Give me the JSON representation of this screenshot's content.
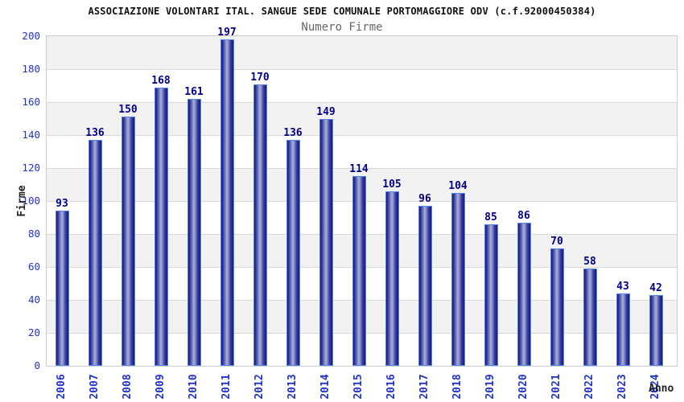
{
  "chart_data": {
    "type": "bar",
    "title": "ASSOCIAZIONE VOLONTARI ITAL. SANGUE SEDE COMUNALE PORTOMAGGIORE ODV (c.f.92000450384)",
    "subtitle": "Numero Firme",
    "ylabel": "Firme",
    "xlabel": "Anno",
    "categories": [
      "2006",
      "2007",
      "2008",
      "2009",
      "2010",
      "2011",
      "2012",
      "2013",
      "2014",
      "2015",
      "2016",
      "2017",
      "2018",
      "2019",
      "2020",
      "2021",
      "2022",
      "2023",
      "2024"
    ],
    "values": [
      93,
      136,
      150,
      168,
      161,
      197,
      170,
      136,
      149,
      114,
      105,
      96,
      104,
      85,
      86,
      70,
      58,
      43,
      42
    ],
    "ylim": [
      0,
      200
    ],
    "yticks": [
      0,
      20,
      40,
      60,
      80,
      100,
      120,
      140,
      160,
      180,
      200
    ],
    "grid": "horizontal gridlines every 20 with alternating gray/white bands",
    "legend": "none",
    "bar_labels_shown": true,
    "colors": {
      "bar_edge": "#16167f",
      "bar_mid": "#a7aedb",
      "bar_outline": "#4f86e8",
      "value_label": "#00008b",
      "axis_tick": "#2233cc",
      "band_gray": "#f2f2f2",
      "band_white": "#ffffff",
      "gridline": "#d9d9d9",
      "plot_border": "#cccccc",
      "title_color": "#111111",
      "subtitle_color": "#666666",
      "axis_title_color": "#222222"
    }
  }
}
